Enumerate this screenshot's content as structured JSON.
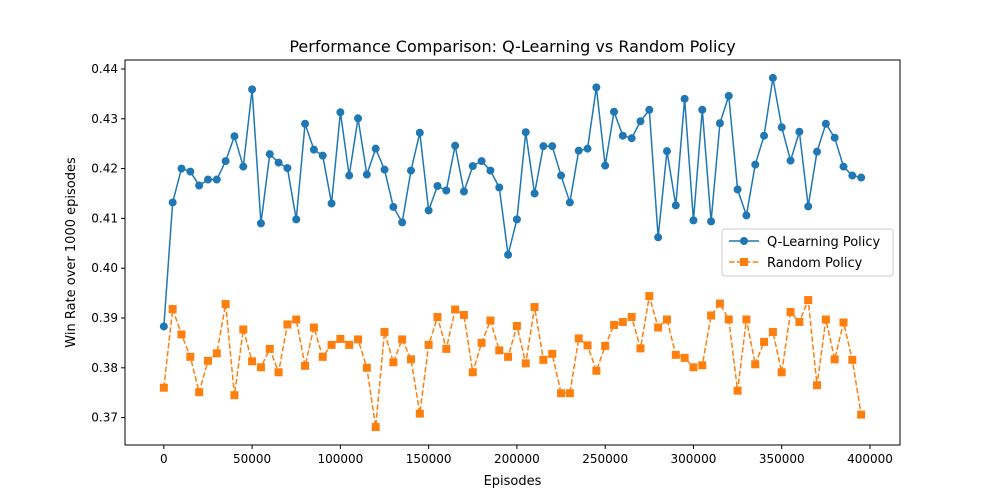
{
  "chart_data": {
    "type": "line",
    "title": "Performance Comparison: Q-Learning vs Random Policy",
    "xlabel": "Episodes",
    "ylabel": "Win Rate over 1000 episodes",
    "xlim": [
      -22000,
      417000
    ],
    "ylim": [
      0.3645,
      0.4418
    ],
    "x_ticks": [
      0,
      50000,
      100000,
      150000,
      200000,
      250000,
      300000,
      350000,
      400000
    ],
    "x_tick_labels": [
      "0",
      "50000",
      "100000",
      "150000",
      "200000",
      "250000",
      "300000",
      "350000",
      "400000"
    ],
    "y_ticks": [
      0.37,
      0.38,
      0.39,
      0.4,
      0.41,
      0.42,
      0.43,
      0.44
    ],
    "y_tick_labels": [
      "0.37",
      "0.38",
      "0.39",
      "0.40",
      "0.41",
      "0.42",
      "0.43",
      "0.44"
    ],
    "grid": false,
    "legend_position": "center-right",
    "x": [
      0,
      5000,
      10000,
      15000,
      20000,
      25000,
      30000,
      35000,
      40000,
      45000,
      50000,
      55000,
      60000,
      65000,
      70000,
      75000,
      80000,
      85000,
      90000,
      95000,
      100000,
      105000,
      110000,
      115000,
      120000,
      125000,
      130000,
      135000,
      140000,
      145000,
      150000,
      155000,
      160000,
      165000,
      170000,
      175000,
      180000,
      185000,
      190000,
      195000,
      200000,
      205000,
      210000,
      215000,
      220000,
      225000,
      230000,
      235000,
      240000,
      245000,
      250000,
      255000,
      260000,
      265000,
      270000,
      275000,
      280000,
      285000,
      290000,
      295000,
      300000,
      305000,
      310000,
      315000,
      320000,
      325000,
      330000,
      335000,
      340000,
      345000,
      350000,
      355000,
      360000,
      365000,
      370000,
      375000,
      380000,
      385000,
      390000,
      395000
    ],
    "series": [
      {
        "name": "Q-Learning Policy",
        "color": "#1f77b4",
        "line_style": "solid",
        "marker": "circle",
        "values": [
          0.3883,
          0.4132,
          0.42,
          0.4194,
          0.4166,
          0.4178,
          0.4178,
          0.4215,
          0.4265,
          0.4204,
          0.4359,
          0.409,
          0.4229,
          0.4212,
          0.4201,
          0.4098,
          0.429,
          0.4238,
          0.4226,
          0.413,
          0.4313,
          0.4186,
          0.4301,
          0.4188,
          0.424,
          0.4198,
          0.4123,
          0.4092,
          0.4196,
          0.4272,
          0.4116,
          0.4165,
          0.4156,
          0.4246,
          0.4154,
          0.4205,
          0.4215,
          0.4196,
          0.4162,
          0.4027,
          0.4098,
          0.4273,
          0.415,
          0.4245,
          0.4245,
          0.4186,
          0.4132,
          0.4236,
          0.424,
          0.4363,
          0.4206,
          0.4314,
          0.4266,
          0.4261,
          0.4295,
          0.4318,
          0.4062,
          0.4235,
          0.4126,
          0.434,
          0.4096,
          0.4318,
          0.4094,
          0.4291,
          0.4346,
          0.4158,
          0.4106,
          0.4208,
          0.4266,
          0.4382,
          0.4283,
          0.4216,
          0.4274,
          0.4124,
          0.4234,
          0.429,
          0.4262,
          0.4204,
          0.4186,
          0.4182
        ]
      },
      {
        "name": "Random Policy",
        "color": "#ff7f0e",
        "line_style": "dashed",
        "marker": "square",
        "values": [
          0.376,
          0.3918,
          0.3867,
          0.3822,
          0.3751,
          0.3814,
          0.3829,
          0.3928,
          0.3745,
          0.3877,
          0.3813,
          0.3801,
          0.3838,
          0.3791,
          0.3887,
          0.3897,
          0.3804,
          0.3881,
          0.3822,
          0.3846,
          0.3858,
          0.3846,
          0.3857,
          0.38,
          0.3681,
          0.3872,
          0.3811,
          0.3857,
          0.3817,
          0.3708,
          0.3846,
          0.3902,
          0.3838,
          0.3917,
          0.3906,
          0.3791,
          0.385,
          0.3895,
          0.3835,
          0.3822,
          0.3884,
          0.3809,
          0.3922,
          0.3816,
          0.3828,
          0.3749,
          0.3749,
          0.3859,
          0.3845,
          0.3794,
          0.3844,
          0.3886,
          0.3892,
          0.3902,
          0.3839,
          0.3944,
          0.3881,
          0.3897,
          0.3826,
          0.382,
          0.3801,
          0.3805,
          0.3905,
          0.3929,
          0.3897,
          0.3754,
          0.3897,
          0.3807,
          0.3852,
          0.3872,
          0.3791,
          0.3912,
          0.3892,
          0.3936,
          0.3765,
          0.3897,
          0.3817,
          0.3891,
          0.3816,
          0.3706
        ]
      }
    ]
  }
}
